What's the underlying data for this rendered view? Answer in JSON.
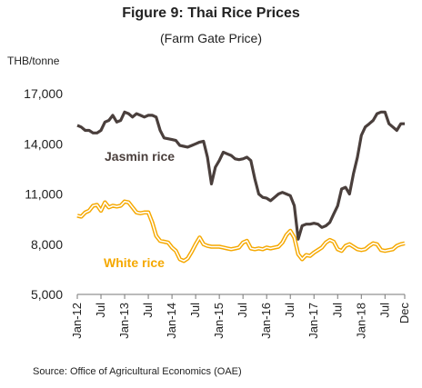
{
  "chart_data": {
    "type": "line",
    "title": "Figure 9: Thai Rice Prices",
    "subtitle": "(Farm Gate Price)",
    "ylabel": "THB/tonne",
    "ylim": [
      5000,
      17000
    ],
    "yticks": [
      "5,000",
      "8,000",
      "11,000",
      "14,000",
      "17,000"
    ],
    "ytick_values": [
      5000,
      8000,
      11000,
      14000,
      17000
    ],
    "xticks": [
      "Jan-12",
      "Jul",
      "Jan-13",
      "Jul",
      "Jan-14",
      "Jul",
      "Jan-15",
      "Jul",
      "Jan-16",
      "Jul",
      "Jan-17",
      "Jul",
      "Jan-18",
      "Jul",
      "Dec"
    ],
    "xtick_positions": [
      0,
      6,
      12,
      18,
      24,
      30,
      36,
      42,
      48,
      54,
      60,
      66,
      72,
      78,
      83
    ],
    "series": [
      {
        "name": "Jasmin rice",
        "color": "#4a3f3c",
        "values": [
          15100,
          15000,
          14800,
          14800,
          14650,
          14650,
          14800,
          15300,
          15400,
          15700,
          15300,
          15400,
          15900,
          15800,
          15600,
          15800,
          15700,
          15600,
          15700,
          15700,
          15600,
          14800,
          14350,
          14300,
          14250,
          14200,
          13900,
          13850,
          13800,
          13900,
          14000,
          14100,
          14150,
          13200,
          11600,
          12600,
          13000,
          13500,
          13400,
          13300,
          13100,
          13050,
          13100,
          13200,
          13000,
          11900,
          11000,
          10800,
          10750,
          10600,
          10800,
          11000,
          11100,
          11000,
          10900,
          10300,
          8300,
          9100,
          9200,
          9200,
          9250,
          9200,
          9000,
          9100,
          9300,
          9800,
          10300,
          11300,
          11400,
          11000,
          12200,
          13200,
          14500,
          15000,
          15200,
          15400,
          15800,
          15900,
          15900,
          15200,
          15000,
          14800,
          15200,
          15200
        ]
      },
      {
        "name": "White rice",
        "color": "#f5a800",
        "values": [
          9700,
          9650,
          9900,
          10000,
          10300,
          10350,
          10000,
          10500,
          10200,
          10300,
          10250,
          10300,
          10550,
          10500,
          10200,
          9900,
          9850,
          9900,
          9900,
          9300,
          8500,
          8200,
          8150,
          8100,
          7800,
          7600,
          7100,
          7000,
          7150,
          7550,
          8000,
          8400,
          8000,
          7900,
          7850,
          7850,
          7850,
          7800,
          7750,
          7700,
          7750,
          7800,
          8100,
          8200,
          7750,
          7700,
          7750,
          7700,
          7800,
          7750,
          7800,
          7850,
          8100,
          8550,
          8800,
          8400,
          7400,
          7100,
          7350,
          7300,
          7500,
          7650,
          7800,
          8100,
          8250,
          8150,
          7700,
          7600,
          7900,
          8000,
          7850,
          7700,
          7650,
          7700,
          7900,
          8050,
          8000,
          7650,
          7600,
          7650,
          7700,
          7900,
          8000,
          8050
        ]
      }
    ],
    "annotations": [
      {
        "text": "Jasmin rice",
        "series": 0
      },
      {
        "text": "White rice",
        "series": 1
      }
    ],
    "source": "Source: Office of Agricultural Economics (OAE)",
    "grid": false,
    "legend": "none"
  }
}
